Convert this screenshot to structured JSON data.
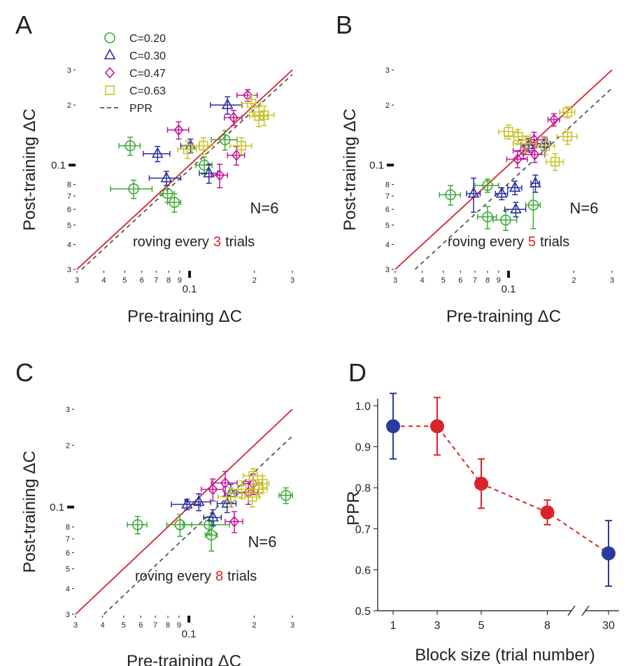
{
  "chart_data": [
    {
      "type": "scatter",
      "panel": "A",
      "xlabel": "Pre-training ΔC",
      "ylabel": "Post-training ΔC",
      "log": true,
      "xlim": [
        0.03,
        0.3
      ],
      "ylim": [
        0.03,
        0.3
      ],
      "xticks": [
        {
          "value": 0.03,
          "label": "3"
        },
        {
          "value": 0.04,
          "label": "4"
        },
        {
          "value": 0.05,
          "label": "5"
        },
        {
          "value": 0.06,
          "label": "6"
        },
        {
          "value": 0.07,
          "label": "7"
        },
        {
          "value": 0.08,
          "label": "8"
        },
        {
          "value": 0.09,
          "label": "9"
        },
        0.1,
        {
          "value": 0.2,
          "label": "2"
        },
        {
          "value": 0.3,
          "label": "3"
        }
      ],
      "yticks": [
        {
          "value": 0.03,
          "label": "3"
        },
        {
          "value": 0.04,
          "label": "4"
        },
        {
          "value": 0.05,
          "label": "5"
        },
        {
          "value": 0.06,
          "label": "6"
        },
        {
          "value": 0.07,
          "label": "7"
        },
        {
          "value": 0.08,
          "label": "8"
        },
        0.1,
        {
          "value": 0.2,
          "label": "2"
        },
        {
          "value": 0.3,
          "label": "3"
        }
      ],
      "n_label": "N=6",
      "annotation": {
        "prefix": "roving every",
        "number": "3",
        "suffix": "trials"
      },
      "ppr": 0.95,
      "ppr_label": "PPR",
      "legend": "upper left",
      "diagonal_color": "#d9232a",
      "series": [
        {
          "name": "C=0.20",
          "color": "#3aaa35",
          "marker": "circle",
          "x": [
            0.053,
            0.055,
            0.079,
            0.085,
            0.146,
            0.117
          ],
          "values": [
            0.125,
            0.076,
            0.072,
            0.065,
            0.134,
            0.1
          ],
          "xerr": [
            0.006,
            0.012,
            0.006,
            0.006,
            0.02,
            0.01
          ],
          "yerr": [
            0.013,
            0.008,
            0.007,
            0.007,
            0.015,
            0.01
          ]
        },
        {
          "name": "C=0.30",
          "color": "#2b2f9e",
          "marker": "triangle",
          "x": [
            0.078,
            0.071,
            0.101,
            0.123,
            0.15
          ],
          "values": [
            0.086,
            0.114,
            0.125,
            0.091,
            0.2
          ],
          "xerr": [
            0.013,
            0.01,
            0.01,
            0.012,
            0.025
          ],
          "yerr": [
            0.007,
            0.01,
            0.01,
            0.01,
            0.02
          ]
        },
        {
          "name": "C=0.47",
          "color": "#c2189b",
          "marker": "diamond",
          "x": [
            0.089,
            0.138,
            0.165,
            0.16,
            0.186
          ],
          "values": [
            0.15,
            0.089,
            0.112,
            0.173,
            0.224
          ],
          "xerr": [
            0.01,
            0.012,
            0.015,
            0.015,
            0.02
          ],
          "yerr": [
            0.015,
            0.012,
            0.012,
            0.015,
            0.015
          ]
        },
        {
          "name": "C=0.63",
          "color": "#c8c42a",
          "marker": "square",
          "x": [
            0.194,
            0.222,
            0.21,
            0.174,
            0.116,
            0.098
          ],
          "values": [
            0.204,
            0.178,
            0.176,
            0.125,
            0.125,
            0.12
          ],
          "xerr": [
            0.02,
            0.025,
            0.02,
            0.02,
            0.012,
            0.01
          ],
          "yerr": [
            0.02,
            0.02,
            0.02,
            0.012,
            0.012,
            0.012
          ]
        }
      ]
    },
    {
      "type": "scatter",
      "panel": "B",
      "xlabel": "Pre-training ΔC",
      "ylabel": "Post-training ΔC",
      "log": true,
      "xlim": [
        0.03,
        0.3
      ],
      "ylim": [
        0.03,
        0.3
      ],
      "xticks": [
        {
          "value": 0.03,
          "label": "3"
        },
        {
          "value": 0.04,
          "label": "4"
        },
        {
          "value": 0.05,
          "label": "5"
        },
        {
          "value": 0.06,
          "label": "6"
        },
        {
          "value": 0.07,
          "label": "7"
        },
        {
          "value": 0.08,
          "label": "8"
        },
        {
          "value": 0.09,
          "label": "9"
        },
        0.1,
        {
          "value": 0.2,
          "label": "2"
        },
        {
          "value": 0.3,
          "label": "3"
        }
      ],
      "yticks": [
        {
          "value": 0.03,
          "label": "3"
        },
        {
          "value": 0.04,
          "label": "4"
        },
        {
          "value": 0.05,
          "label": "5"
        },
        {
          "value": 0.06,
          "label": "6"
        },
        {
          "value": 0.07,
          "label": "7"
        },
        {
          "value": 0.08,
          "label": "8"
        },
        0.1,
        {
          "value": 0.2,
          "label": "2"
        },
        {
          "value": 0.3,
          "label": "3"
        }
      ],
      "n_label": "N=6",
      "annotation": {
        "prefix": "roving every",
        "number": "5",
        "suffix": "trials"
      },
      "ppr": 0.81,
      "diagonal_color": "#d9232a",
      "series": [
        {
          "color": "#3aaa35",
          "marker": "circle",
          "x": [
            0.054,
            0.08,
            0.08,
            0.097,
            0.13
          ],
          "values": [
            0.071,
            0.079,
            0.055,
            0.053,
            0.063
          ],
          "xerr": [
            0.006,
            0.01,
            0.008,
            0.012,
            0.01
          ],
          "yerr": [
            0.008,
            0.006,
            0.007,
            0.006,
            0.015
          ]
        },
        {
          "color": "#2b2f9e",
          "marker": "triangle",
          "x": [
            0.069,
            0.093,
            0.107,
            0.133,
            0.108,
            0.124,
            0.146
          ],
          "values": [
            0.072,
            0.072,
            0.077,
            0.081,
            0.06,
            0.126,
            0.128
          ],
          "xerr": [
            0.005,
            0.006,
            0.008,
            0.006,
            0.012,
            0.01,
            0.01
          ],
          "yerr": [
            0.014,
            0.005,
            0.006,
            0.008,
            0.005,
            0.01,
            0.01
          ]
        },
        {
          "color": "#c2189b",
          "marker": "diamond",
          "x": [
            0.117,
            0.132,
            0.162,
            0.131,
            0.11
          ],
          "values": [
            0.118,
            0.113,
            0.169,
            0.134,
            0.107
          ],
          "xerr": [
            0.012,
            0.015,
            0.01,
            0.02,
            0.012
          ],
          "yerr": [
            0.01,
            0.01,
            0.012,
            0.012,
            0.01
          ]
        },
        {
          "color": "#c8c42a",
          "marker": "square",
          "x": [
            0.1,
            0.12,
            0.164,
            0.187,
            0.187,
            0.111,
            0.148
          ],
          "values": [
            0.147,
            0.128,
            0.104,
            0.184,
            0.139,
            0.139,
            0.125
          ],
          "xerr": [
            0.01,
            0.015,
            0.015,
            0.015,
            0.02,
            0.015,
            0.015
          ],
          "yerr": [
            0.012,
            0.012,
            0.01,
            0.012,
            0.012,
            0.012,
            0.012
          ]
        }
      ]
    },
    {
      "type": "scatter",
      "panel": "C",
      "xlabel": "Pre-training ΔC",
      "ylabel": "Post-training ΔC",
      "log": true,
      "xlim": [
        0.03,
        0.3
      ],
      "ylim": [
        0.03,
        0.3
      ],
      "xticks": [
        {
          "value": 0.03,
          "label": "3"
        },
        {
          "value": 0.04,
          "label": "4"
        },
        {
          "value": 0.05,
          "label": "5"
        },
        {
          "value": 0.06,
          "label": "6"
        },
        {
          "value": 0.07,
          "label": "7"
        },
        {
          "value": 0.08,
          "label": "8"
        },
        {
          "value": 0.09,
          "label": "9"
        },
        0.1,
        {
          "value": 0.2,
          "label": "2"
        },
        {
          "value": 0.3,
          "label": "3"
        }
      ],
      "yticks": [
        {
          "value": 0.03,
          "label": "3"
        },
        {
          "value": 0.04,
          "label": "4"
        },
        {
          "value": 0.05,
          "label": "5"
        },
        {
          "value": 0.06,
          "label": "6"
        },
        {
          "value": 0.07,
          "label": "7"
        },
        {
          "value": 0.08,
          "label": "8"
        },
        0.1,
        {
          "value": 0.2,
          "label": "2"
        },
        {
          "value": 0.3,
          "label": "3"
        }
      ],
      "n_label": "N=6",
      "annotation": {
        "prefix": "roving every",
        "number": "8",
        "suffix": "trials"
      },
      "ppr": 0.74,
      "diagonal_color": "#d9232a",
      "series": [
        {
          "color": "#3aaa35",
          "marker": "circle",
          "x": [
            0.058,
            0.091,
            0.124,
            0.127,
            0.28
          ],
          "values": [
            0.082,
            0.082,
            0.082,
            0.073,
            0.114
          ],
          "xerr": [
            0.006,
            0.012,
            0.03,
            0.008,
            0.02
          ],
          "yerr": [
            0.008,
            0.01,
            0.008,
            0.012,
            0.01
          ]
        },
        {
          "color": "#2b2f9e",
          "marker": "triangle",
          "x": [
            0.098,
            0.111,
            0.129,
            0.156,
            0.15
          ],
          "values": [
            0.103,
            0.106,
            0.089,
            0.117,
            0.104
          ],
          "xerr": [
            0.015,
            0.015,
            0.012,
            0.01,
            0.015
          ],
          "yerr": [
            0.006,
            0.01,
            0.008,
            0.012,
            0.01
          ]
        },
        {
          "color": "#c2189b",
          "marker": "diamond",
          "x": [
            0.129,
            0.147,
            0.162,
            0.188,
            0.198
          ],
          "values": [
            0.122,
            0.131,
            0.085,
            0.118,
            0.13
          ],
          "xerr": [
            0.015,
            0.02,
            0.015,
            0.02,
            0.02
          ],
          "yerr": [
            0.015,
            0.018,
            0.01,
            0.015,
            0.015
          ]
        },
        {
          "color": "#c8c42a",
          "marker": "square",
          "x": [
            0.156,
            0.175,
            0.196,
            0.219,
            0.21,
            0.198
          ],
          "values": [
            0.112,
            0.122,
            0.112,
            0.13,
            0.122,
            0.142
          ],
          "xerr": [
            0.02,
            0.02,
            0.015,
            0.015,
            0.02,
            0.02
          ],
          "yerr": [
            0.012,
            0.012,
            0.012,
            0.012,
            0.01,
            0.012
          ]
        }
      ]
    },
    {
      "type": "line",
      "panel": "D",
      "xlabel": "Block size (trial number)",
      "ylabel": "PPR",
      "x": [
        1,
        3,
        5,
        8,
        30
      ],
      "values": [
        0.95,
        0.95,
        0.81,
        0.74,
        0.64
      ],
      "yerr": [
        0.08,
        0.07,
        0.06,
        0.03,
        0.08
      ],
      "colors": [
        "#2b3aa0",
        "#d9232a",
        "#d9232a",
        "#d9232a",
        "#2b3aa0"
      ],
      "line_color": "#d9232a",
      "dashed": true,
      "xlim": [
        0.3,
        31
      ],
      "xbreak": [
        9,
        28
      ],
      "xticks": [
        1,
        3,
        5,
        8,
        30
      ],
      "ylim": [
        0.5,
        1.0
      ],
      "yticks": [
        0.5,
        0.6,
        0.7,
        0.8,
        0.9,
        {
          "value": 1.0,
          "label": "1.0"
        }
      ]
    }
  ]
}
